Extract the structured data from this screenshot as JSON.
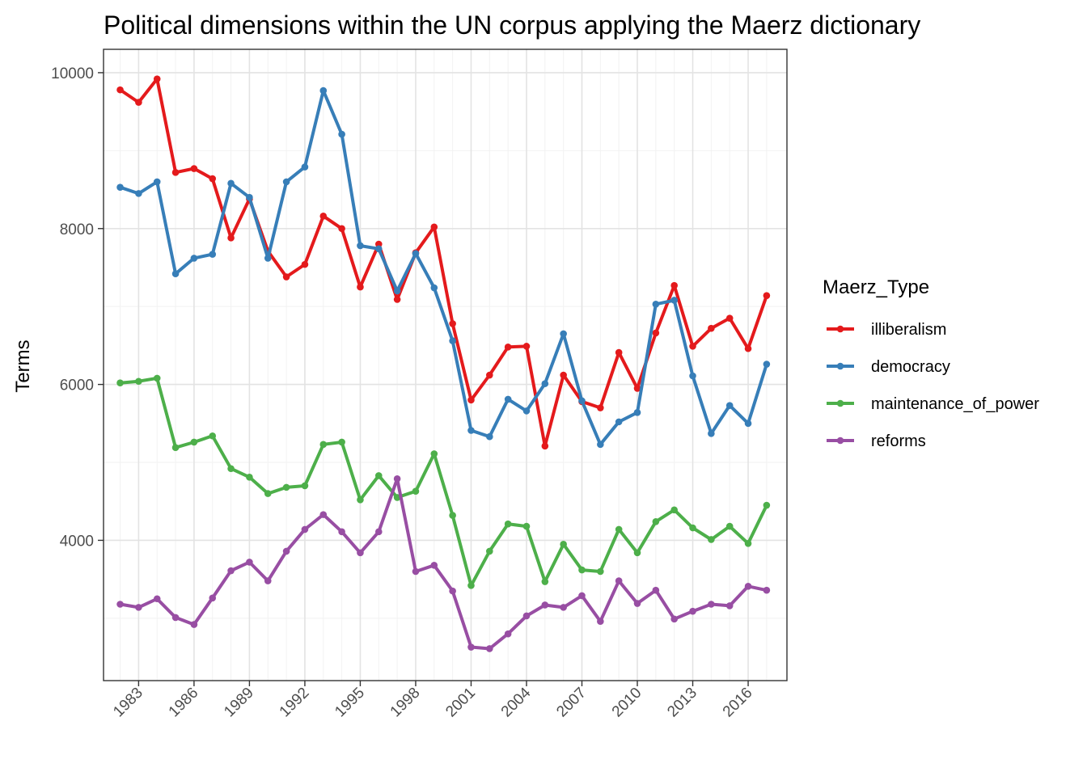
{
  "chart_data": {
    "type": "line",
    "title": "Political dimensions within the UN corpus applying the Maerz dictionary",
    "xlabel": "",
    "ylabel": "Terms",
    "x": [
      1982,
      1983,
      1984,
      1985,
      1986,
      1987,
      1988,
      1989,
      1990,
      1991,
      1992,
      1993,
      1994,
      1995,
      1996,
      1997,
      1998,
      1999,
      2000,
      2001,
      2002,
      2003,
      2004,
      2005,
      2006,
      2007,
      2008,
      2009,
      2010,
      2011,
      2012,
      2013,
      2014,
      2015,
      2016,
      2017
    ],
    "x_ticks": [
      "1983",
      "1986",
      "1989",
      "1992",
      "1995",
      "1998",
      "2001",
      "2004",
      "2007",
      "2010",
      "2013",
      "2016"
    ],
    "y_ticks": [
      "4000",
      "6000",
      "8000",
      "10000"
    ],
    "xlim": [
      1981.1,
      2018.1
    ],
    "ylim": [
      2200,
      10300
    ],
    "grid": true,
    "legend": {
      "title": "Maerz_Type",
      "placement": "right"
    },
    "series": [
      {
        "name": "illiberalism",
        "color": "#e41a1c",
        "values": [
          9780,
          9620,
          9920,
          8720,
          8770,
          8640,
          7880,
          8380,
          7710,
          7380,
          7540,
          8160,
          8000,
          7250,
          7800,
          7090,
          7690,
          8020,
          6780,
          5800,
          6120,
          6480,
          6490,
          5210,
          6120,
          5780,
          5700,
          6410,
          5950,
          6660,
          7270,
          6490,
          6720,
          6850,
          6460,
          7140
        ]
      },
      {
        "name": "democracy",
        "color": "#377eb8",
        "values": [
          8530,
          8450,
          8600,
          7420,
          7620,
          7670,
          8580,
          8400,
          7620,
          8600,
          8790,
          9770,
          9210,
          7780,
          7740,
          7200,
          7680,
          7240,
          6560,
          5410,
          5330,
          5810,
          5660,
          6010,
          6650,
          5790,
          5230,
          5520,
          5640,
          7030,
          7080,
          6110,
          5370,
          5730,
          5500,
          6260
        ]
      },
      {
        "name": "maintenance_of_power",
        "color": "#4daf4a",
        "values": [
          6020,
          6040,
          6080,
          5190,
          5260,
          5340,
          4920,
          4810,
          4600,
          4680,
          4700,
          5230,
          5260,
          4520,
          4830,
          4550,
          4630,
          5110,
          4320,
          3420,
          3860,
          4210,
          4180,
          3470,
          3950,
          3620,
          3600,
          4140,
          3840,
          4240,
          4390,
          4160,
          4010,
          4180,
          3960,
          4450
        ]
      },
      {
        "name": "reforms",
        "color": "#984ea3",
        "values": [
          3180,
          3140,
          3250,
          3010,
          2920,
          3260,
          3610,
          3720,
          3480,
          3860,
          4140,
          4330,
          4110,
          3840,
          4110,
          4790,
          3600,
          3680,
          3350,
          2630,
          2610,
          2800,
          3030,
          3170,
          3140,
          3290,
          2960,
          3480,
          3190,
          3360,
          2990,
          3090,
          3180,
          3160,
          3410,
          3360
        ]
      }
    ]
  }
}
